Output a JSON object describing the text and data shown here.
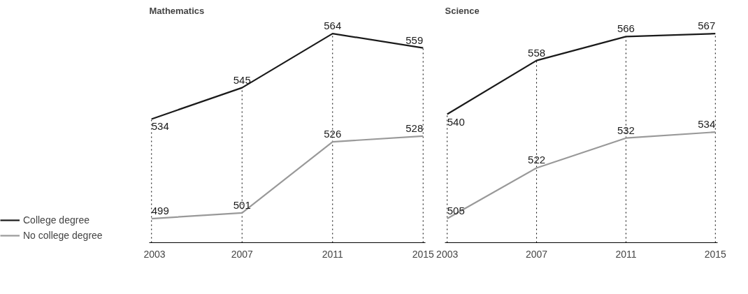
{
  "chart_data": [
    {
      "type": "line",
      "title": "Mathematics",
      "x": [
        2003,
        2007,
        2011,
        2015
      ],
      "xlim": [
        2002.9,
        2015.1
      ],
      "xticks": [
        2003,
        2007,
        2011,
        2015
      ],
      "tick_labels": "x",
      "data_labels": true,
      "grid": false,
      "legend": "bottom left",
      "marker": "none",
      "line_style": "solid",
      "ref_lines": [
        {
          "axis": "x",
          "value": 2003,
          "line_style": "dotted",
          "color": "#000000"
        },
        {
          "axis": "x",
          "value": 2007,
          "line_style": "dotted",
          "color": "#000000"
        },
        {
          "axis": "x",
          "value": 2011,
          "line_style": "dotted",
          "color": "#000000"
        },
        {
          "axis": "x",
          "value": 2015,
          "line_style": "dotted",
          "color": "#000000"
        }
      ],
      "series": [
        {
          "name": "College degree",
          "color": "#1a1a1a",
          "values": [
            534,
            545,
            564,
            559
          ]
        },
        {
          "name": "No college degree",
          "color": "#999999",
          "values": [
            499,
            501,
            526,
            528
          ]
        }
      ]
    },
    {
      "type": "line",
      "title": "Science",
      "x": [
        2003,
        2007,
        2011,
        2015
      ],
      "xlim": [
        2002.9,
        2015.1
      ],
      "xticks": [
        2003,
        2007,
        2011,
        2015
      ],
      "tick_labels": "x",
      "data_labels": true,
      "grid": false,
      "marker": "none",
      "line_style": "solid",
      "ref_lines": [
        {
          "axis": "x",
          "value": 2003,
          "line_style": "dotted",
          "color": "#000000"
        },
        {
          "axis": "x",
          "value": 2007,
          "line_style": "dotted",
          "color": "#000000"
        },
        {
          "axis": "x",
          "value": 2011,
          "line_style": "dotted",
          "color": "#000000"
        },
        {
          "axis": "x",
          "value": 2015,
          "line_style": "dotted",
          "color": "#000000"
        }
      ],
      "series": [
        {
          "color": "#1a1a1a",
          "values": [
            540,
            558,
            566,
            567
          ]
        },
        {
          "color": "#999999",
          "values": [
            505,
            522,
            532,
            534
          ]
        }
      ]
    }
  ]
}
